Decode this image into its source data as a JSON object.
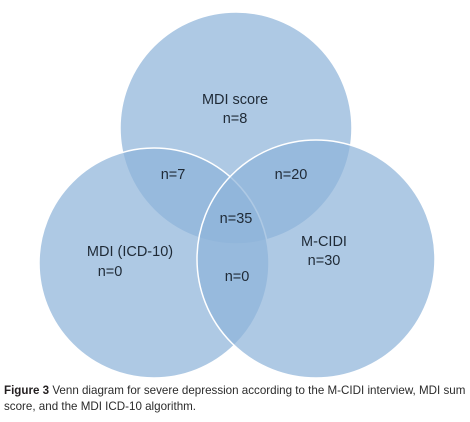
{
  "diagram": {
    "type": "venn",
    "sets": [
      {
        "id": "mdi_score",
        "label": "MDI score",
        "only": "n=8"
      },
      {
        "id": "mdi_icd10",
        "label": "MDI (ICD-10)",
        "only": "n=0"
      },
      {
        "id": "m_cidi",
        "label": "M-CIDI",
        "only": "n=30"
      }
    ],
    "intersections": {
      "mdi_score_and_mdi_icd10": "n=7",
      "mdi_score_and_m_cidi": "n=20",
      "mdi_icd10_and_m_cidi": "n=0",
      "all_three": "n=35"
    },
    "colors": {
      "circle_fill": "#8fb4d9",
      "circle_opacity": "0.72",
      "text": "#1f2a36"
    }
  },
  "caption": {
    "label": "Figure 3",
    "text": " Venn diagram for severe depression according to the M-CIDI interview, MDI sum score, and the MDI ICD-10 algorithm."
  }
}
